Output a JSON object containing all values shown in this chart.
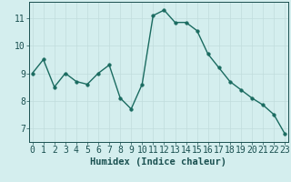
{
  "x": [
    0,
    1,
    2,
    3,
    4,
    5,
    6,
    7,
    8,
    9,
    10,
    11,
    12,
    13,
    14,
    15,
    16,
    17,
    18,
    19,
    20,
    21,
    22,
    23
  ],
  "y": [
    9.0,
    9.5,
    8.5,
    9.0,
    8.7,
    8.6,
    9.0,
    9.3,
    8.1,
    7.7,
    8.6,
    11.1,
    11.3,
    10.85,
    10.85,
    10.55,
    9.7,
    9.2,
    8.7,
    8.4,
    8.1,
    7.85,
    7.5,
    6.8
  ],
  "line_color": "#1a6b60",
  "marker_color": "#1a6b60",
  "bg_color": "#d4eeee",
  "grid_color_major": "#c0dcdc",
  "grid_color_minor": "#c0dcdc",
  "axis_color": "#1a5050",
  "xlabel": "Humidex (Indice chaleur)",
  "yticks": [
    7,
    8,
    9,
    10,
    11
  ],
  "xticks": [
    0,
    1,
    2,
    3,
    4,
    5,
    6,
    7,
    8,
    9,
    10,
    11,
    12,
    13,
    14,
    15,
    16,
    17,
    18,
    19,
    20,
    21,
    22,
    23
  ],
  "ylim": [
    6.5,
    11.6
  ],
  "xlim": [
    -0.3,
    23.3
  ],
  "xlabel_fontsize": 7.5,
  "tick_fontsize": 7,
  "linewidth": 1.0,
  "markersize": 2.5
}
